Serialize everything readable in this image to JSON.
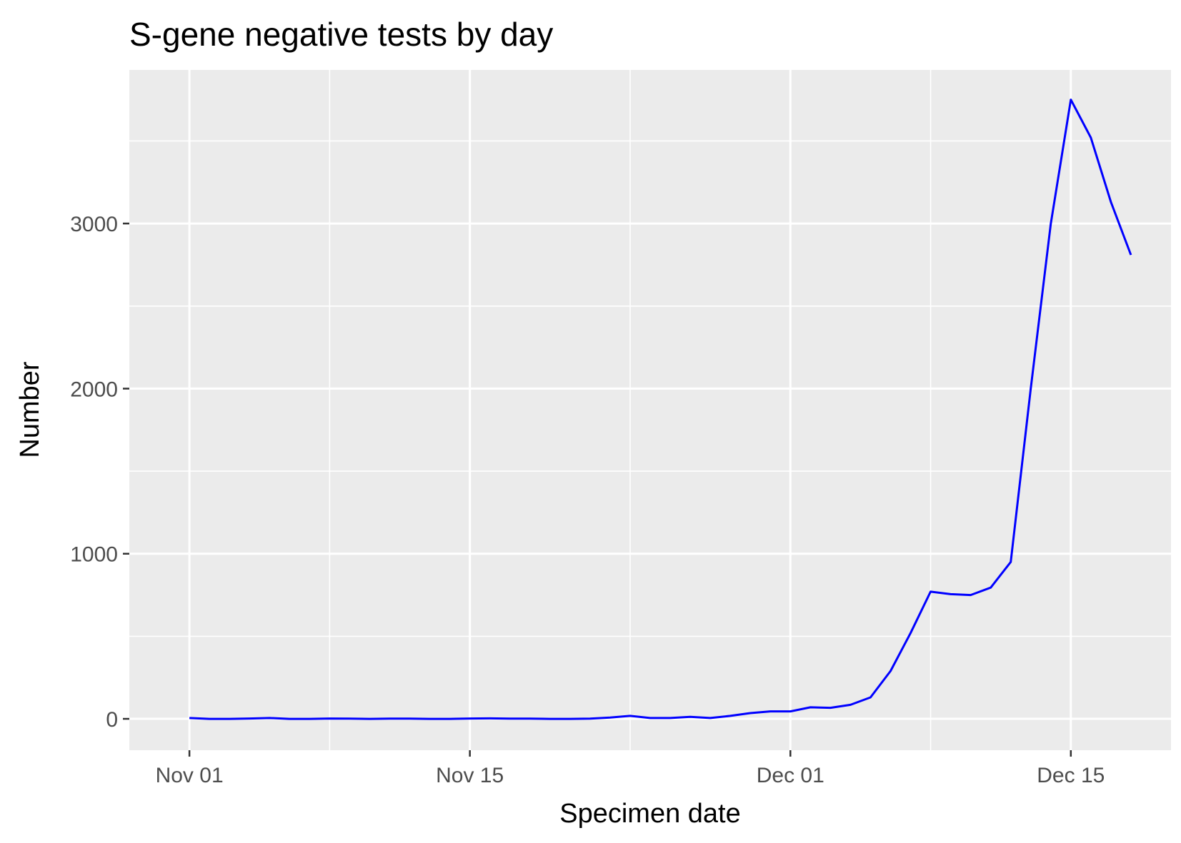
{
  "chart_data": {
    "type": "line",
    "title": "S-gene negative tests by day",
    "xlabel": "Specimen date",
    "ylabel": "Number",
    "x_ticks": [
      {
        "date": "2020-11-01",
        "label": "Nov 01"
      },
      {
        "date": "2020-11-15",
        "label": "Nov 15"
      },
      {
        "date": "2020-12-01",
        "label": "Dec 01"
      },
      {
        "date": "2020-12-15",
        "label": "Dec 15"
      }
    ],
    "y_ticks": [
      {
        "value": 0,
        "label": "0"
      },
      {
        "value": 1000,
        "label": "1000"
      },
      {
        "value": 2000,
        "label": "2000"
      },
      {
        "value": 3000,
        "label": "3000"
      }
    ],
    "xlim": [
      "2020-10-29",
      "2020-12-20"
    ],
    "ylim": [
      -190,
      3930
    ],
    "grid": true,
    "background": "#ebebeb",
    "series": [
      {
        "color": "#0000ff",
        "x": [
          "2020-11-01",
          "2020-11-02",
          "2020-11-03",
          "2020-11-04",
          "2020-11-05",
          "2020-11-06",
          "2020-11-07",
          "2020-11-08",
          "2020-11-09",
          "2020-11-10",
          "2020-11-11",
          "2020-11-12",
          "2020-11-13",
          "2020-11-14",
          "2020-11-15",
          "2020-11-16",
          "2020-11-17",
          "2020-11-18",
          "2020-11-19",
          "2020-11-20",
          "2020-11-21",
          "2020-11-22",
          "2020-11-23",
          "2020-11-24",
          "2020-11-25",
          "2020-11-26",
          "2020-11-27",
          "2020-11-28",
          "2020-11-29",
          "2020-11-30",
          "2020-12-01",
          "2020-12-02",
          "2020-12-03",
          "2020-12-04",
          "2020-12-05",
          "2020-12-06",
          "2020-12-07",
          "2020-12-08",
          "2020-12-09",
          "2020-12-10",
          "2020-12-11",
          "2020-12-12",
          "2020-12-13",
          "2020-12-14",
          "2020-12-15",
          "2020-12-16",
          "2020-12-17",
          "2020-12-18"
        ],
        "values": [
          5,
          0,
          0,
          2,
          5,
          0,
          0,
          2,
          1,
          0,
          1,
          1,
          0,
          0,
          2,
          3,
          1,
          1,
          0,
          0,
          1,
          8,
          18,
          5,
          5,
          12,
          5,
          18,
          35,
          45,
          45,
          70,
          67,
          85,
          130,
          290,
          520,
          770,
          755,
          750,
          795,
          950,
          2000,
          3000,
          3750,
          3520,
          3130,
          2810
        ]
      }
    ]
  }
}
